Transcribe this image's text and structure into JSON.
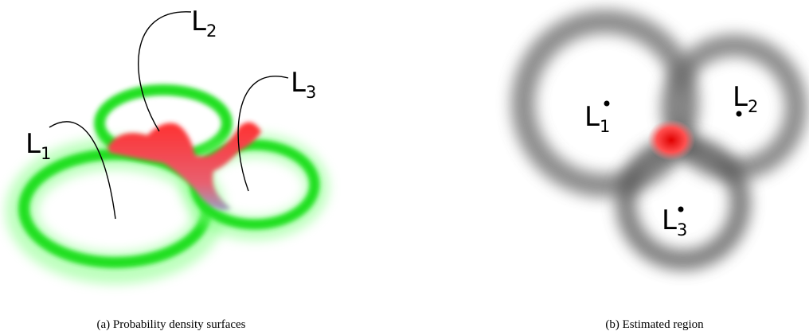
{
  "panel_a": {
    "labels": [
      {
        "letter": "L",
        "sub": "1"
      },
      {
        "letter": "L",
        "sub": "2"
      },
      {
        "letter": "L",
        "sub": "3"
      }
    ],
    "caption": "(a) Probability density surfaces"
  },
  "panel_b": {
    "labels": [
      {
        "letter": "L",
        "sub": "1"
      },
      {
        "letter": "L",
        "sub": "2"
      },
      {
        "letter": "L",
        "sub": "3"
      }
    ],
    "caption": "(b) Estimated region"
  }
}
